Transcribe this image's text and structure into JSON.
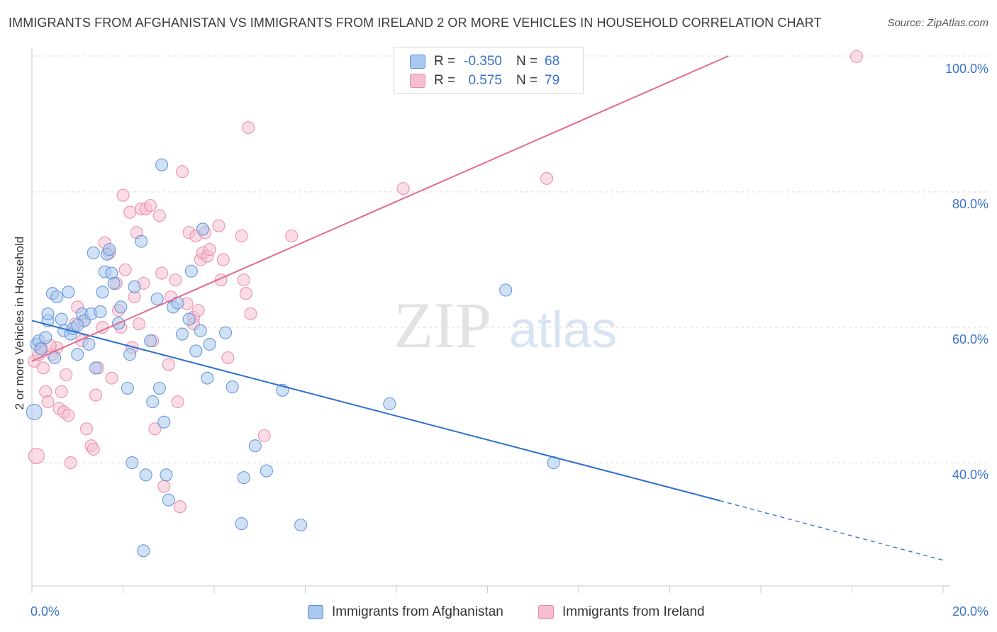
{
  "header": {
    "title": "IMMIGRANTS FROM AFGHANISTAN VS IMMIGRANTS FROM IRELAND 2 OR MORE VEHICLES IN HOUSEHOLD CORRELATION CHART",
    "source": "Source: ZipAtlas.com"
  },
  "watermark": "ZIPatlas",
  "legend": {
    "rows": [
      {
        "r_label": "R =",
        "r_value": "-0.350",
        "n_label": "N =",
        "n_value": "68"
      },
      {
        "r_label": "R =",
        "r_value": "0.575",
        "n_label": "N =",
        "n_value": "79"
      }
    ]
  },
  "colors": {
    "afghanistan_fill": "#aac8ef",
    "afghanistan_stroke": "#5b8fd6",
    "afghanistan_line": "#2e6fcf",
    "ireland_fill": "#f6bfd0",
    "ireland_stroke": "#e889a8",
    "ireland_line": "#e26a92",
    "tick_text": "#3b73c9",
    "grid": "#dcdcdc"
  },
  "chart_data": {
    "type": "scatter",
    "title": "IMMIGRANTS FROM AFGHANISTAN VS IMMIGRANTS FROM IRELAND 2 OR MORE VEHICLES IN HOUSEHOLD CORRELATION CHART",
    "xlabel": "",
    "ylabel": "2 or more Vehicles in Household",
    "xlim": [
      0,
      20
    ],
    "ylim": [
      20,
      101
    ],
    "x_ticks": [
      "0.0%",
      "20.0%"
    ],
    "y_ticks": [
      {
        "value": 40,
        "label": "40.0%"
      },
      {
        "value": 60,
        "label": "60.0%"
      },
      {
        "value": 80,
        "label": "80.0%"
      },
      {
        "value": 100,
        "label": "100.0%"
      }
    ],
    "grid": true,
    "legend_position": "top-center",
    "series": [
      {
        "name": "Immigrants from Afghanistan",
        "r": -0.35,
        "n": 68,
        "trend": {
          "x0": 0,
          "y0": 61.0,
          "x1": 15.1,
          "y1": 34.4,
          "dashed_to_x": 20.0,
          "dashed_to_y": 25.6
        },
        "points": [
          [
            0.05,
            47.5
          ],
          [
            0.1,
            57.5
          ],
          [
            0.15,
            58.0
          ],
          [
            0.3,
            58.5
          ],
          [
            0.35,
            61.0
          ],
          [
            0.35,
            62.0
          ],
          [
            0.45,
            65.0
          ],
          [
            0.55,
            64.5
          ],
          [
            0.65,
            61.2
          ],
          [
            0.7,
            59.5
          ],
          [
            0.8,
            65.2
          ],
          [
            0.85,
            59.0
          ],
          [
            0.9,
            59.8
          ],
          [
            1.0,
            56.0
          ],
          [
            1.1,
            62.0
          ],
          [
            1.15,
            61.0
          ],
          [
            1.25,
            57.5
          ],
          [
            1.3,
            62.0
          ],
          [
            1.35,
            71.0
          ],
          [
            1.4,
            54.0
          ],
          [
            1.5,
            62.3
          ],
          [
            1.55,
            65.2
          ],
          [
            1.6,
            68.2
          ],
          [
            1.65,
            70.8
          ],
          [
            1.7,
            71.5
          ],
          [
            1.75,
            68.0
          ],
          [
            1.8,
            66.5
          ],
          [
            1.95,
            63.0
          ],
          [
            2.1,
            51.0
          ],
          [
            2.15,
            56.0
          ],
          [
            2.2,
            40.0
          ],
          [
            2.25,
            66.0
          ],
          [
            2.4,
            72.7
          ],
          [
            2.45,
            27.0
          ],
          [
            2.5,
            38.2
          ],
          [
            2.6,
            58.0
          ],
          [
            2.65,
            49.0
          ],
          [
            2.75,
            64.2
          ],
          [
            2.8,
            51.0
          ],
          [
            2.85,
            84.0
          ],
          [
            2.9,
            46.0
          ],
          [
            2.95,
            38.2
          ],
          [
            3.0,
            34.5
          ],
          [
            3.1,
            63.0
          ],
          [
            3.3,
            59.0
          ],
          [
            3.45,
            61.2
          ],
          [
            3.5,
            68.3
          ],
          [
            3.6,
            56.5
          ],
          [
            3.7,
            59.5
          ],
          [
            3.75,
            74.5
          ],
          [
            3.85,
            52.5
          ],
          [
            3.9,
            57.5
          ],
          [
            4.25,
            59.2
          ],
          [
            4.4,
            51.2
          ],
          [
            4.6,
            31.0
          ],
          [
            4.65,
            37.8
          ],
          [
            4.9,
            42.5
          ],
          [
            5.15,
            38.8
          ],
          [
            5.5,
            50.7
          ],
          [
            5.9,
            30.8
          ],
          [
            7.85,
            48.7
          ],
          [
            10.4,
            65.5
          ],
          [
            11.45,
            40.0
          ],
          [
            0.5,
            55.5
          ],
          [
            1.0,
            60.3
          ],
          [
            0.2,
            56.8
          ],
          [
            1.9,
            60.6
          ],
          [
            3.2,
            63.6
          ]
        ]
      },
      {
        "name": "Immigrants from Ireland",
        "r": 0.575,
        "n": 79,
        "trend": {
          "x0": 0,
          "y0": 55.0,
          "x1": 15.6,
          "y1": 101.0
        },
        "points": [
          [
            0.05,
            55.0
          ],
          [
            0.1,
            41.0
          ],
          [
            0.15,
            56.0
          ],
          [
            0.25,
            54.0
          ],
          [
            0.3,
            50.5
          ],
          [
            0.35,
            49.0
          ],
          [
            0.45,
            56.0
          ],
          [
            0.55,
            57.0
          ],
          [
            0.6,
            48.0
          ],
          [
            0.65,
            50.5
          ],
          [
            0.7,
            47.5
          ],
          [
            0.75,
            53.0
          ],
          [
            0.8,
            47.0
          ],
          [
            0.85,
            40.0
          ],
          [
            0.95,
            60.5
          ],
          [
            1.0,
            63.0
          ],
          [
            1.1,
            58.0
          ],
          [
            1.2,
            45.0
          ],
          [
            1.3,
            42.5
          ],
          [
            1.35,
            42.0
          ],
          [
            1.4,
            50.0
          ],
          [
            1.45,
            54.0
          ],
          [
            1.55,
            60.0
          ],
          [
            1.6,
            72.5
          ],
          [
            1.7,
            71.0
          ],
          [
            1.75,
            52.5
          ],
          [
            1.85,
            66.5
          ],
          [
            1.9,
            62.5
          ],
          [
            1.95,
            60.0
          ],
          [
            2.0,
            79.5
          ],
          [
            2.05,
            68.5
          ],
          [
            2.15,
            77.0
          ],
          [
            2.2,
            57.0
          ],
          [
            2.25,
            64.5
          ],
          [
            2.3,
            74.0
          ],
          [
            2.4,
            77.5
          ],
          [
            2.45,
            66.5
          ],
          [
            2.5,
            77.5
          ],
          [
            2.6,
            78.0
          ],
          [
            2.65,
            58.0
          ],
          [
            2.7,
            45.0
          ],
          [
            2.8,
            76.5
          ],
          [
            2.85,
            68.0
          ],
          [
            2.9,
            36.5
          ],
          [
            3.0,
            54.5
          ],
          [
            3.05,
            64.5
          ],
          [
            3.15,
            67.0
          ],
          [
            3.2,
            49.0
          ],
          [
            3.25,
            33.5
          ],
          [
            3.3,
            83.0
          ],
          [
            3.4,
            63.5
          ],
          [
            3.45,
            74.0
          ],
          [
            3.55,
            61.5
          ],
          [
            3.6,
            73.5
          ],
          [
            3.65,
            62.5
          ],
          [
            3.7,
            70.0
          ],
          [
            3.75,
            71.0
          ],
          [
            3.8,
            74.0
          ],
          [
            3.85,
            70.5
          ],
          [
            3.9,
            71.5
          ],
          [
            4.1,
            75.0
          ],
          [
            4.15,
            67.0
          ],
          [
            4.2,
            70.0
          ],
          [
            4.3,
            55.5
          ],
          [
            4.6,
            73.5
          ],
          [
            4.65,
            67.0
          ],
          [
            4.7,
            65.0
          ],
          [
            4.75,
            89.5
          ],
          [
            4.8,
            62.0
          ],
          [
            5.1,
            44.0
          ],
          [
            5.7,
            73.5
          ],
          [
            8.15,
            80.5
          ],
          [
            11.3,
            82.0
          ],
          [
            18.1,
            100.0
          ],
          [
            0.2,
            57.0
          ],
          [
            0.4,
            57.3
          ],
          [
            1.15,
            61.0
          ],
          [
            2.35,
            60.5
          ],
          [
            3.55,
            60.5
          ]
        ]
      }
    ]
  },
  "bottom_legend": [
    {
      "label": "Immigrants from Afghanistan"
    },
    {
      "label": "Immigrants from Ireland"
    }
  ]
}
